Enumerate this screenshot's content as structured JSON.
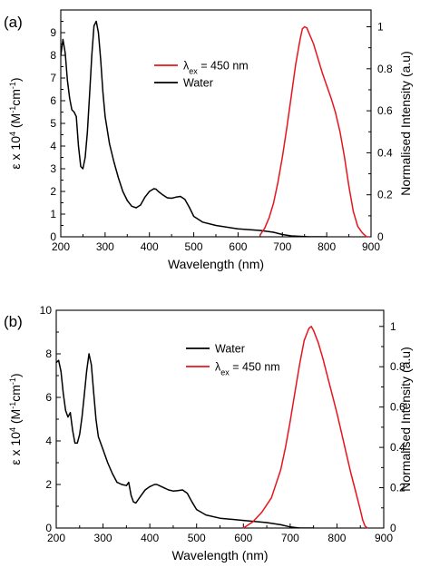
{
  "chart_data": [
    {
      "type": "line",
      "panel_label": "(a)",
      "title": "",
      "xlabel": "Wavelength (nm)",
      "ylabel": "ε x 10⁴ (M⁻¹cm⁻¹)",
      "y2label": "Normalised Intensity (a.u)",
      "xlim": [
        200,
        900
      ],
      "ylim": [
        0,
        10
      ],
      "y2lim": [
        0,
        1.08
      ],
      "xticks": [
        "200",
        "300",
        "400",
        "500",
        "600",
        "700",
        "800",
        "900"
      ],
      "yticks": [
        "0",
        "1",
        "2",
        "3",
        "4",
        "5",
        "6",
        "7",
        "8",
        "9"
      ],
      "y2ticks": [
        "0",
        "0.2",
        "0.4",
        "0.6",
        "0.8",
        "1"
      ],
      "grid": false,
      "legend": {
        "placement": "upper-middle",
        "entries": [
          "λex = 450 nm",
          "Water"
        ]
      },
      "series": [
        {
          "name": "Water",
          "axis": "left",
          "color": "#000000",
          "x": [
            200,
            205,
            210,
            215,
            220,
            225,
            230,
            235,
            240,
            245,
            250,
            255,
            260,
            265,
            270,
            275,
            280,
            285,
            290,
            295,
            300,
            310,
            320,
            330,
            340,
            350,
            360,
            370,
            380,
            390,
            400,
            410,
            415,
            420,
            430,
            440,
            450,
            460,
            470,
            480,
            490,
            500,
            520,
            550,
            600,
            650,
            680,
            700,
            720,
            740,
            760,
            800
          ],
          "y": [
            8.0,
            8.7,
            8.1,
            6.9,
            6.1,
            5.6,
            5.5,
            5.3,
            4.0,
            3.1,
            3.0,
            3.5,
            4.6,
            6.3,
            8.0,
            9.3,
            9.5,
            9.0,
            7.8,
            6.4,
            5.3,
            4.1,
            3.3,
            2.6,
            2.0,
            1.6,
            1.35,
            1.28,
            1.4,
            1.75,
            2.0,
            2.12,
            2.1,
            2.0,
            1.85,
            1.72,
            1.7,
            1.75,
            1.78,
            1.65,
            1.3,
            0.9,
            0.65,
            0.5,
            0.35,
            0.28,
            0.2,
            0.1,
            0.04,
            0.02,
            0.0,
            0.0
          ]
        },
        {
          "name": "λex = 450 nm",
          "axis": "right",
          "color": "#e8141d",
          "x": [
            650,
            660,
            670,
            680,
            690,
            700,
            710,
            720,
            730,
            740,
            745,
            750,
            755,
            760,
            770,
            780,
            790,
            800,
            810,
            820,
            830,
            840,
            850,
            860,
            870,
            880,
            890,
            895
          ],
          "y": [
            0.01,
            0.04,
            0.09,
            0.16,
            0.26,
            0.38,
            0.52,
            0.67,
            0.82,
            0.94,
            0.99,
            1.0,
            0.995,
            0.97,
            0.92,
            0.85,
            0.78,
            0.72,
            0.66,
            0.59,
            0.5,
            0.38,
            0.24,
            0.12,
            0.05,
            0.02,
            0.0,
            0.0
          ]
        }
      ]
    },
    {
      "type": "line",
      "panel_label": "(b)",
      "title": "",
      "xlabel": "Wavelength (nm)",
      "ylabel": "ε x 10⁴ (M⁻¹cm⁻¹)",
      "y2label": "Normalised Intensity (a.u)",
      "xlim": [
        200,
        900
      ],
      "ylim": [
        0,
        10
      ],
      "y2lim": [
        0,
        1.08
      ],
      "xticks": [
        "200",
        "300",
        "400",
        "500",
        "600",
        "700",
        "800",
        "900"
      ],
      "yticks": [
        "0",
        "2",
        "4",
        "6",
        "8",
        "10"
      ],
      "y2ticks": [
        "0",
        "0.2",
        "0.4",
        "0.6",
        "0.8",
        "1"
      ],
      "grid": false,
      "legend": {
        "placement": "upper-middle",
        "entries": [
          "Water",
          "λex = 450 nm"
        ]
      },
      "series": [
        {
          "name": "Water",
          "axis": "left",
          "color": "#000000",
          "x": [
            200,
            205,
            210,
            215,
            220,
            225,
            230,
            235,
            240,
            245,
            250,
            255,
            260,
            265,
            270,
            275,
            280,
            285,
            290,
            300,
            310,
            320,
            330,
            340,
            350,
            355,
            360,
            365,
            370,
            380,
            390,
            400,
            410,
            415,
            420,
            430,
            440,
            450,
            460,
            470,
            480,
            490,
            500,
            520,
            550,
            600,
            650,
            680,
            700,
            720,
            750
          ],
          "y": [
            7.6,
            7.7,
            7.2,
            6.2,
            5.4,
            5.1,
            5.3,
            4.5,
            3.9,
            3.9,
            4.3,
            5.1,
            6.1,
            7.2,
            8.0,
            7.5,
            6.2,
            5.0,
            4.2,
            3.6,
            3.0,
            2.5,
            2.1,
            2.0,
            1.95,
            2.1,
            1.5,
            1.2,
            1.15,
            1.45,
            1.75,
            1.9,
            2.0,
            2.0,
            1.95,
            1.85,
            1.75,
            1.7,
            1.72,
            1.75,
            1.6,
            1.2,
            0.85,
            0.6,
            0.45,
            0.35,
            0.25,
            0.15,
            0.05,
            0.0,
            0.0
          ]
        },
        {
          "name": "λex = 450 nm",
          "axis": "right",
          "color": "#e8141d",
          "x": [
            600,
            620,
            640,
            660,
            680,
            690,
            700,
            710,
            720,
            730,
            740,
            745,
            750,
            760,
            770,
            780,
            790,
            800,
            810,
            820,
            830,
            840,
            850,
            855,
            860,
            865
          ],
          "y": [
            0.0,
            0.03,
            0.08,
            0.15,
            0.29,
            0.4,
            0.53,
            0.67,
            0.81,
            0.93,
            0.99,
            1.0,
            0.98,
            0.92,
            0.84,
            0.75,
            0.66,
            0.57,
            0.47,
            0.37,
            0.27,
            0.18,
            0.09,
            0.04,
            0.01,
            0.0
          ]
        }
      ]
    }
  ]
}
